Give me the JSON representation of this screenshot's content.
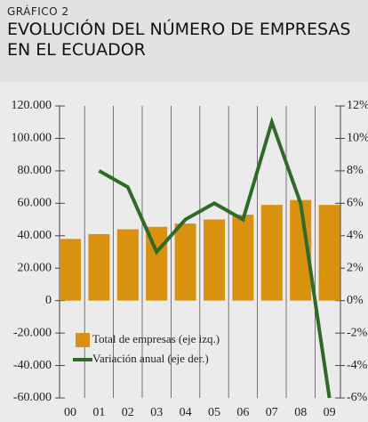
{
  "chart_data": {
    "type": "bar-line",
    "kicker": "GRÁFICO 2",
    "title": "EVOLUCIÓN DEL NÚMERO DE EMPRESAS EN EL ECUADOR",
    "categories": [
      "00",
      "01",
      "02",
      "03",
      "04",
      "05",
      "06",
      "07",
      "08",
      "09"
    ],
    "series": [
      {
        "name": "Total de empresas (eje izq.)",
        "type": "bar",
        "color": "#d8920f",
        "values": [
          38000,
          41000,
          44000,
          45500,
          47500,
          50000,
          53000,
          59000,
          62000,
          59000
        ]
      },
      {
        "name": "Variación anual (eje der.)",
        "type": "line",
        "axis": "y2",
        "color": "#2e6b27",
        "values": [
          null,
          8,
          7,
          3,
          5,
          6,
          5,
          11,
          6,
          -6
        ]
      }
    ],
    "ylim": [
      -60000,
      120000
    ],
    "yticks": [
      {
        "value": -60000,
        "label": "-60.000"
      },
      {
        "value": -40000,
        "label": "-40.000"
      },
      {
        "value": -20000,
        "label": "-20.000"
      },
      0,
      {
        "value": 20000,
        "label": "20.000"
      },
      {
        "value": 40000,
        "label": "40.000"
      },
      {
        "value": 60000,
        "label": "60.000"
      },
      {
        "value": 80000,
        "label": "80.000"
      },
      {
        "value": 100000,
        "label": "100.000"
      },
      {
        "value": 120000,
        "label": "120.000"
      }
    ],
    "y2lim": [
      -6,
      12
    ],
    "y2ticks": [
      {
        "value": -6,
        "label": "-6%"
      },
      {
        "value": -4,
        "label": "-4%"
      },
      {
        "value": -2,
        "label": "-2%"
      },
      {
        "value": 0,
        "label": "0%"
      },
      {
        "value": 2,
        "label": "2%"
      },
      {
        "value": 4,
        "label": "4%"
      },
      {
        "value": 6,
        "label": "6%"
      },
      {
        "value": 8,
        "label": "8%"
      },
      {
        "value": 10,
        "label": "10%"
      },
      {
        "value": 12,
        "label": "12%"
      }
    ]
  }
}
